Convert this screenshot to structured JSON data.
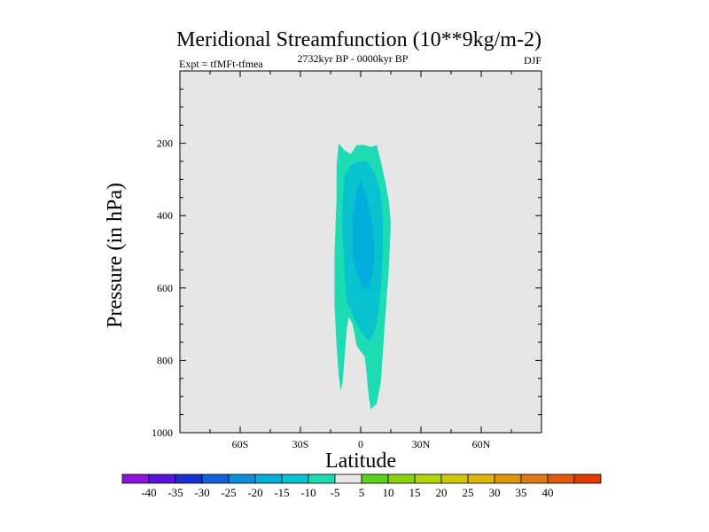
{
  "chart_data": {
    "type": "contour",
    "title": "Meridional Streamfunction (10**9kg/m-2)",
    "subtitle_left": "Expt = tfMFt-tfmea",
    "subtitle_center": "2732kyr BP - 0000kyr BP",
    "subtitle_right": "DJF",
    "xlabel": "Latitude",
    "ylabel": "Pressure (in hPa)",
    "xlim": [
      -90,
      90
    ],
    "ylim": [
      1000,
      0
    ],
    "x_ticks": [
      {
        "value": -60,
        "label": "60S"
      },
      {
        "value": -30,
        "label": "30S"
      },
      {
        "value": 0,
        "label": "0"
      },
      {
        "value": 30,
        "label": "30N"
      },
      {
        "value": 60,
        "label": "60N"
      }
    ],
    "y_ticks": [
      {
        "value": 200,
        "label": "200"
      },
      {
        "value": 400,
        "label": "400"
      },
      {
        "value": 600,
        "label": "600"
      },
      {
        "value": 800,
        "label": "800"
      },
      {
        "value": 1000,
        "label": "1000"
      }
    ],
    "background_color": "#e6e6e6",
    "contours": [
      {
        "level": "-10 to -5",
        "color": "#1ddcb4",
        "points": [
          [
            -11,
            200
          ],
          [
            -8,
            220
          ],
          [
            -5,
            230
          ],
          [
            -2,
            205
          ],
          [
            2,
            205
          ],
          [
            5,
            210
          ],
          [
            8,
            205
          ],
          [
            10,
            250
          ],
          [
            12,
            300
          ],
          [
            14,
            360
          ],
          [
            15,
            420
          ],
          [
            14,
            550
          ],
          [
            13,
            620
          ],
          [
            12,
            700
          ],
          [
            11,
            780
          ],
          [
            10,
            860
          ],
          [
            8,
            920
          ],
          [
            5,
            935
          ],
          [
            4,
            900
          ],
          [
            3,
            840
          ],
          [
            2,
            790
          ],
          [
            0,
            775
          ],
          [
            -2,
            760
          ],
          [
            -4,
            700
          ],
          [
            -6,
            680
          ],
          [
            -7,
            720
          ],
          [
            -8,
            790
          ],
          [
            -9,
            860
          ],
          [
            -10,
            885
          ],
          [
            -11,
            840
          ],
          [
            -12,
            760
          ],
          [
            -13,
            650
          ],
          [
            -13,
            500
          ],
          [
            -12,
            350
          ],
          [
            -12,
            260
          ]
        ]
      },
      {
        "level": "-15 to -10",
        "color": "#08c3cf",
        "points": [
          [
            -8,
            290
          ],
          [
            -5,
            260
          ],
          [
            -1,
            250
          ],
          [
            3,
            250
          ],
          [
            7,
            280
          ],
          [
            10,
            340
          ],
          [
            11,
            420
          ],
          [
            11,
            500
          ],
          [
            10,
            600
          ],
          [
            9,
            660
          ],
          [
            7,
            720
          ],
          [
            4,
            750
          ],
          [
            0,
            720
          ],
          [
            -3,
            690
          ],
          [
            -5,
            660
          ],
          [
            -7,
            640
          ],
          [
            -8,
            560
          ],
          [
            -9,
            450
          ],
          [
            -9,
            360
          ]
        ]
      },
      {
        "level": "-20 to -15",
        "color": "#04aedc",
        "points": [
          [
            -4,
            400
          ],
          [
            -2,
            330
          ],
          [
            0,
            300
          ],
          [
            2,
            330
          ],
          [
            4,
            380
          ],
          [
            6,
            430
          ],
          [
            7,
            500
          ],
          [
            6,
            560
          ],
          [
            4,
            600
          ],
          [
            1,
            600
          ],
          [
            -2,
            560
          ],
          [
            -4,
            500
          ]
        ]
      }
    ],
    "colorbar": {
      "colors": [
        "#8c14dc",
        "#5a14d8",
        "#1432d0",
        "#1460d8",
        "#0c8ed8",
        "#04aedc",
        "#08c3cf",
        "#1ddcb4",
        "#e6e6e6",
        "#5ad21e",
        "#8cd20a",
        "#b4d20a",
        "#d2c80a",
        "#dcb40a",
        "#dc960a",
        "#e07814",
        "#e05a0a",
        "#e03c00"
      ],
      "labels": [
        "-40",
        "-35",
        "-30",
        "-25",
        "-20",
        "-15",
        "-10",
        "-5",
        "5",
        "10",
        "15",
        "20",
        "25",
        "30",
        "35",
        "40"
      ]
    }
  }
}
